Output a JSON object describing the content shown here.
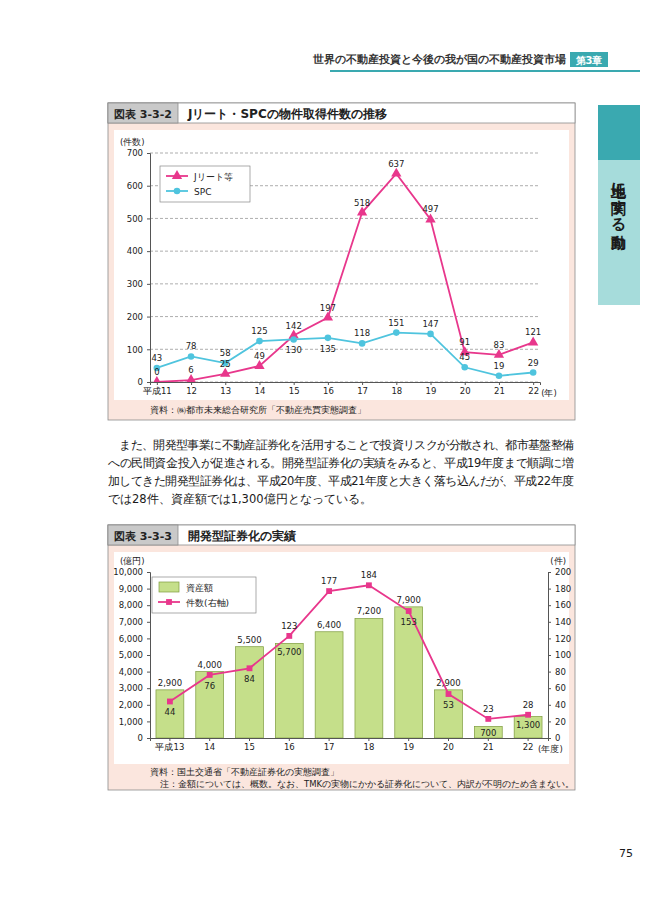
{
  "header": {
    "running_title": "世界の不動産投資と今後の我が国の不動産投資市場",
    "chapter": "第3章"
  },
  "side_tab": "土地に関する動向",
  "chart_data": [
    {
      "type": "line",
      "figure_number": "図表 3-3-2",
      "title": "Jリート・SPCの物件取得件数の推移",
      "y_label": "(件数)",
      "x_label": "(年)",
      "categories": [
        "平成11",
        "12",
        "13",
        "14",
        "15",
        "16",
        "17",
        "18",
        "19",
        "20",
        "21",
        "22"
      ],
      "series": [
        {
          "name": "Jリート等",
          "color": "#e8378c",
          "marker": "triangle",
          "values": [
            0,
            6,
            25,
            49,
            142,
            197,
            518,
            637,
            497,
            91,
            83,
            121
          ]
        },
        {
          "name": "SPC",
          "color": "#4fc4de",
          "marker": "circle",
          "values": [
            43,
            78,
            58,
            125,
            130,
            135,
            118,
            151,
            147,
            45,
            19,
            29
          ]
        }
      ],
      "ylim": [
        0,
        700
      ],
      "yticks": [
        0,
        100,
        200,
        300,
        400,
        500,
        600,
        700
      ],
      "grid": true,
      "legend": "upper left",
      "data_labels": true,
      "source": "資料：㈱都市未来総合研究所「不動産売買実態調査」"
    },
    {
      "type": "bar",
      "figure_number": "図表 3-3-3",
      "title": "開発型証券化の実績",
      "y_label": "(億円)",
      "y2_label": "(件)",
      "x_label": "(年度)",
      "categories": [
        "平成13",
        "14",
        "15",
        "16",
        "17",
        "18",
        "19",
        "20",
        "21",
        "22"
      ],
      "series": [
        {
          "name": "資産額",
          "type": "bar",
          "color": "#c5df8a",
          "values": [
            2900,
            4000,
            5500,
            5700,
            6400,
            7200,
            7900,
            2900,
            700,
            1300
          ],
          "value_labels": [
            "2,900",
            "4,000",
            "5,500",
            "5,700",
            "6,400",
            "7,200",
            "7,900",
            "2,900",
            "700",
            "1,300"
          ]
        },
        {
          "name": "件数(右軸)",
          "type": "line",
          "axis": "y2",
          "color": "#e8378c",
          "marker": "square",
          "values": [
            44,
            76,
            84,
            123,
            177,
            184,
            153,
            53,
            23,
            28
          ]
        }
      ],
      "ylim": [
        0,
        10000
      ],
      "yticks": [
        0,
        {
          "value": 1000,
          "label": "1,000"
        },
        {
          "value": 2000,
          "label": "2,000"
        },
        {
          "value": 3000,
          "label": "3,000"
        },
        {
          "value": 4000,
          "label": "4,000"
        },
        {
          "value": 5000,
          "label": "5,000"
        },
        {
          "value": 6000,
          "label": "6,000"
        },
        {
          "value": 7000,
          "label": "7,000"
        },
        {
          "value": 8000,
          "label": "8,000"
        },
        {
          "value": 9000,
          "label": "9,000"
        },
        {
          "value": 10000,
          "label": "10,000"
        }
      ],
      "y2lim": [
        0,
        200
      ],
      "y2ticks": [
        0,
        20,
        40,
        60,
        80,
        100,
        120,
        140,
        160,
        180,
        200
      ],
      "grid": false,
      "legend": "upper left",
      "data_labels": true,
      "source": "資料：国土交通省「不動産証券化の実態調査」",
      "note": "注：金額については、概数。なお、TMKの実物にかかる証券化について、内訳が不明のため含まない。"
    }
  ],
  "body_text": [
    "　また、開発型事業に不動産証券化を活用することで投資リスクが分散され、都市基盤整備",
    "への民間資金投入が促進される。開発型証券化の実績をみると、平成19年度まで順調に増",
    "加してきた開発型証券化は、平成20年度、平成21年度と大きく落ち込んだが、平成22年度",
    "では28件、資産額では1,300億円となっている。"
  ],
  "page_number": "75"
}
